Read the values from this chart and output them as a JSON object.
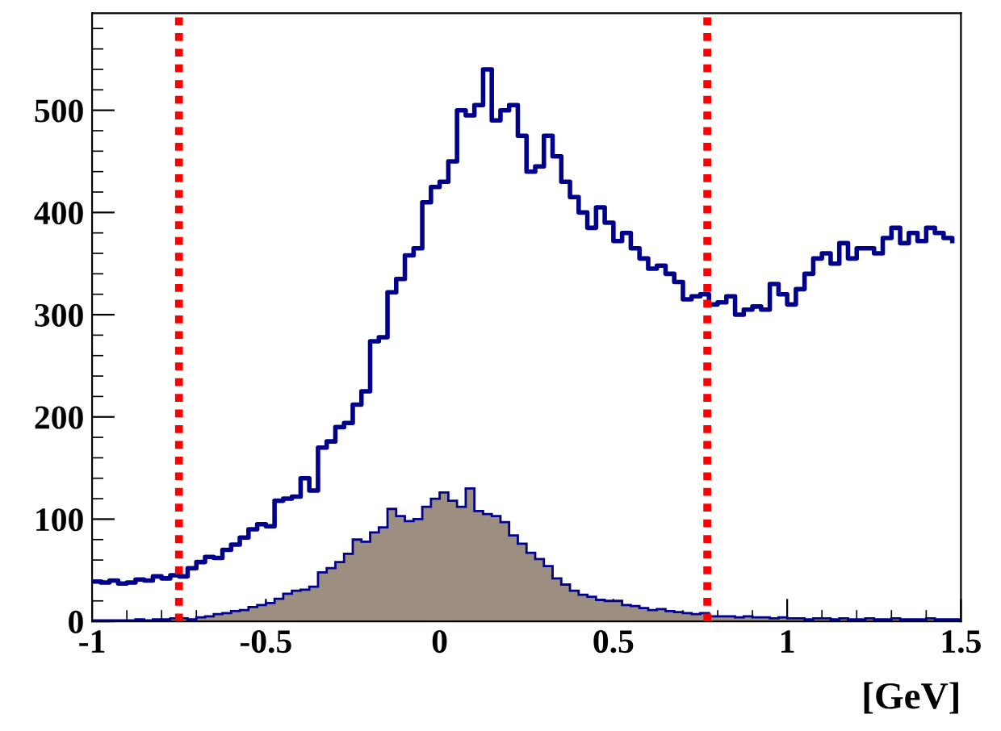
{
  "chart_data": {
    "type": "histogram",
    "xlabel": "[GeV]",
    "bins": [
      -1.0,
      -0.975,
      -0.95,
      -0.925,
      -0.9,
      -0.875,
      -0.85,
      -0.825,
      -0.8,
      -0.775,
      -0.75,
      -0.725,
      -0.7,
      -0.675,
      -0.65,
      -0.625,
      -0.6,
      -0.575,
      -0.55,
      -0.525,
      -0.5,
      -0.475,
      -0.45,
      -0.425,
      -0.4,
      -0.375,
      -0.35,
      -0.325,
      -0.3,
      -0.275,
      -0.25,
      -0.225,
      -0.2,
      -0.175,
      -0.15,
      -0.125,
      -0.1,
      -0.075,
      -0.05,
      -0.025,
      0.0,
      0.025,
      0.05,
      0.075,
      0.1,
      0.125,
      0.15,
      0.175,
      0.2,
      0.225,
      0.25,
      0.275,
      0.3,
      0.325,
      0.35,
      0.375,
      0.4,
      0.425,
      0.45,
      0.475,
      0.5,
      0.525,
      0.55,
      0.575,
      0.6,
      0.625,
      0.65,
      0.675,
      0.7,
      0.725,
      0.75,
      0.775,
      0.8,
      0.825,
      0.85,
      0.875,
      0.9,
      0.925,
      0.95,
      0.975,
      1.0,
      1.025,
      1.05,
      1.075,
      1.1,
      1.125,
      1.15,
      1.175,
      1.2,
      1.225,
      1.25,
      1.275,
      1.3,
      1.325,
      1.35,
      1.375,
      1.4,
      1.425,
      1.45,
      1.475,
      1.5
    ],
    "series": [
      {
        "type": "step",
        "color": "#00008b",
        "x": [
          -1.0,
          -0.975,
          -0.95,
          -0.925,
          -0.9,
          -0.875,
          -0.85,
          -0.825,
          -0.8,
          -0.775,
          -0.75,
          -0.725,
          -0.7,
          -0.675,
          -0.65,
          -0.625,
          -0.6,
          -0.575,
          -0.55,
          -0.525,
          -0.5,
          -0.475,
          -0.45,
          -0.425,
          -0.4,
          -0.375,
          -0.35,
          -0.325,
          -0.3,
          -0.275,
          -0.25,
          -0.225,
          -0.2,
          -0.175,
          -0.15,
          -0.125,
          -0.1,
          -0.075,
          -0.05,
          -0.025,
          0.0,
          0.025,
          0.05,
          0.075,
          0.1,
          0.125,
          0.15,
          0.175,
          0.2,
          0.225,
          0.25,
          0.275,
          0.3,
          0.325,
          0.35,
          0.375,
          0.4,
          0.425,
          0.45,
          0.475,
          0.5,
          0.525,
          0.55,
          0.575,
          0.6,
          0.625,
          0.65,
          0.675,
          0.7,
          0.725,
          0.75,
          0.775,
          0.8,
          0.825,
          0.85,
          0.875,
          0.9,
          0.925,
          0.95,
          0.975,
          1.0,
          1.025,
          1.05,
          1.075,
          1.1,
          1.125,
          1.15,
          1.175,
          1.2,
          1.225,
          1.25,
          1.275,
          1.3,
          1.325,
          1.35,
          1.375,
          1.4,
          1.425,
          1.45,
          1.475
        ],
        "values": [
          39,
          38,
          40,
          37,
          38,
          41,
          40,
          44,
          42,
          45,
          44,
          52,
          58,
          63,
          62,
          70,
          75,
          82,
          90,
          95,
          93,
          118,
          120,
          122,
          140,
          128,
          170,
          176,
          190,
          194,
          212,
          225,
          274,
          278,
          322,
          335,
          358,
          365,
          410,
          425,
          430,
          450,
          500,
          495,
          505,
          540,
          490,
          500,
          505,
          475,
          440,
          445,
          475,
          455,
          430,
          415,
          400,
          385,
          405,
          390,
          372,
          380,
          365,
          355,
          345,
          348,
          340,
          332,
          315,
          318,
          320,
          310,
          312,
          318,
          300,
          305,
          308,
          305,
          330,
          320,
          310,
          325,
          340,
          355,
          360,
          350,
          370,
          355,
          365,
          365,
          360,
          375,
          385,
          370,
          380,
          372,
          385,
          380,
          375,
          372
        ]
      },
      {
        "type": "histogram",
        "color": "#9c8f82",
        "values": [
          1,
          1,
          1,
          1,
          1,
          2,
          1,
          2,
          2,
          3,
          3,
          2,
          4,
          5,
          7,
          8,
          10,
          11,
          14,
          16,
          18,
          22,
          27,
          30,
          31,
          34,
          48,
          52,
          58,
          66,
          80,
          78,
          87,
          92,
          110,
          103,
          98,
          100,
          112,
          120,
          126,
          118,
          112,
          130,
          108,
          105,
          103,
          97,
          84,
          76,
          67,
          61,
          54,
          42,
          36,
          30,
          26,
          24,
          21,
          20,
          20,
          16,
          15,
          13,
          11,
          12,
          10,
          9,
          8,
          7,
          8,
          5,
          5,
          5,
          4,
          5,
          4,
          4,
          3,
          4,
          3,
          3,
          2,
          3,
          3,
          2,
          3,
          2,
          2,
          3,
          2,
          2,
          3,
          2,
          2,
          2,
          3,
          2,
          2,
          2
        ]
      }
    ],
    "xlim": [
      -1,
      1.5
    ],
    "xticks": [
      {
        "value": -1,
        "label": "-1"
      },
      {
        "value": -0.5,
        "label": "-0.5"
      },
      0,
      0.5,
      1,
      1.5
    ],
    "ylim": [
      0,
      595
    ],
    "yticks": [
      0,
      100,
      200,
      300,
      400,
      500
    ],
    "ref_lines": [
      {
        "axis": "x",
        "value": -0.75,
        "color": "#ff0000",
        "line_style": "dotted"
      },
      {
        "axis": "x",
        "value": 0.77,
        "color": "#ff0000",
        "line_style": "dotted"
      }
    ]
  }
}
